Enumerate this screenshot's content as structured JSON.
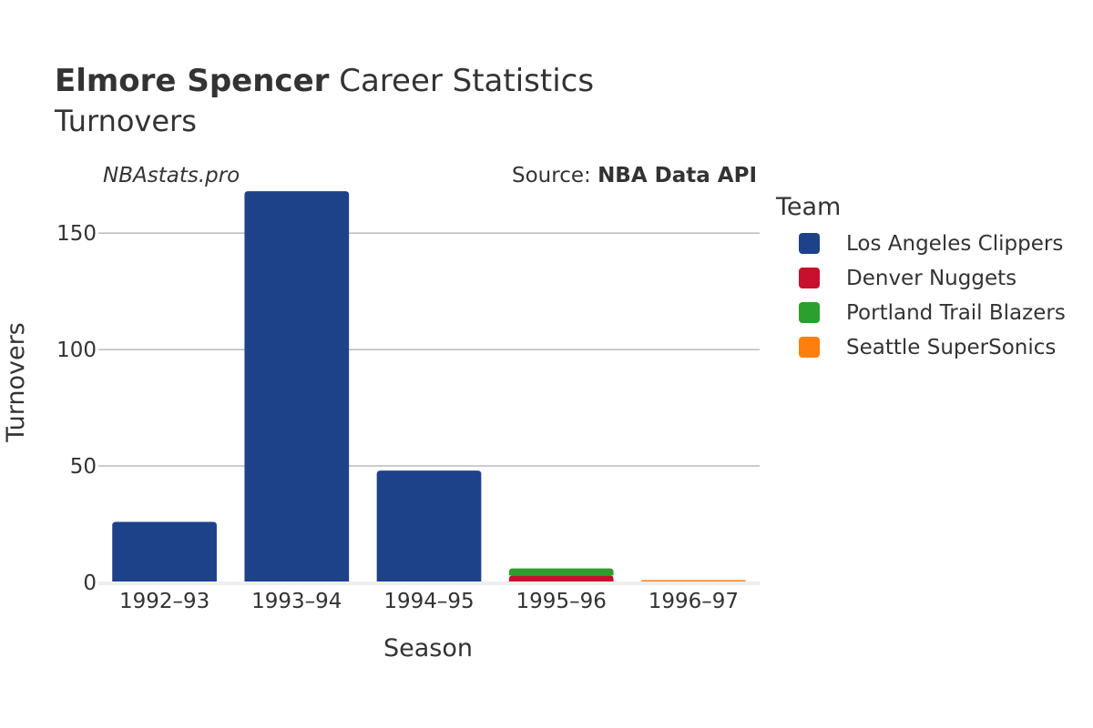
{
  "header": {
    "title_bold": "Elmore Spencer",
    "title_rest": " Career Statistics",
    "subtitle": "Turnovers",
    "watermark": "NBAstats.pro",
    "source_prefix": "Source: ",
    "source_name": "NBA Data API"
  },
  "legend": {
    "title": "Team"
  },
  "chart_data": {
    "type": "bar",
    "stacked": true,
    "title": "Elmore Spencer Career Statistics",
    "subtitle": "Turnovers",
    "xlabel": "Season",
    "ylabel": "Turnovers",
    "categories": [
      "1992–93",
      "1993–94",
      "1994–95",
      "1995–96",
      "1996–97"
    ],
    "ylim": [
      0,
      170
    ],
    "yticks": [
      0,
      50,
      100,
      150
    ],
    "grid": true,
    "legend_position": "right",
    "series": [
      {
        "name": "Los Angeles Clippers",
        "color": "#1d428a",
        "values": [
          26,
          168,
          48,
          0,
          0
        ]
      },
      {
        "name": "Denver Nuggets",
        "color": "#c8102e",
        "values": [
          0,
          0,
          0,
          3,
          0
        ]
      },
      {
        "name": "Portland Trail Blazers",
        "color": "#2ca02c",
        "values": [
          0,
          0,
          0,
          3,
          0
        ]
      },
      {
        "name": "Seattle SuperSonics",
        "color": "#ff7f0e",
        "values": [
          0,
          0,
          0,
          0,
          1
        ]
      }
    ]
  }
}
